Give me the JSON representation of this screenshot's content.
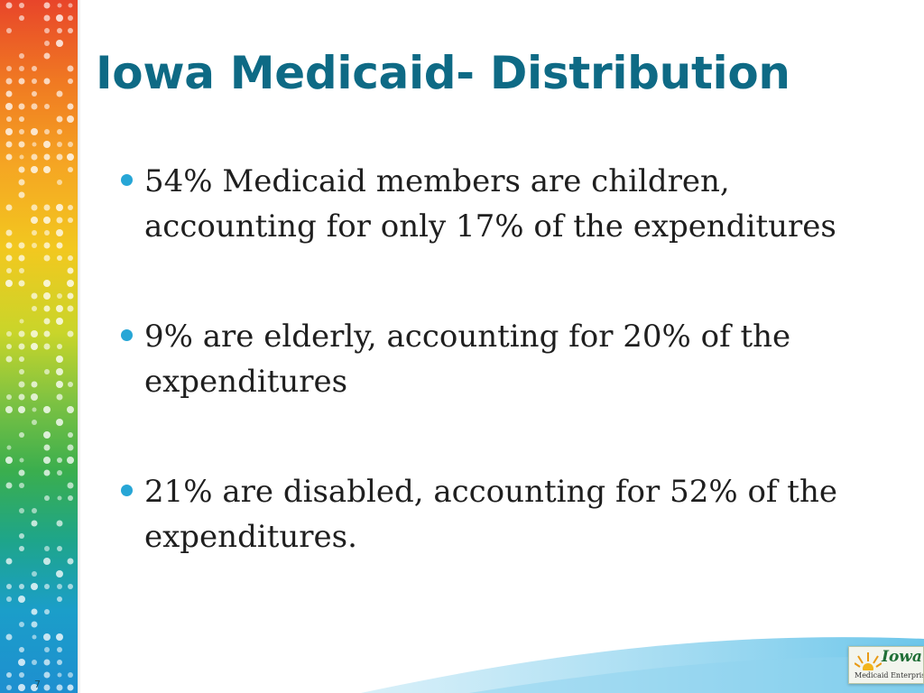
{
  "slide": {
    "title": "Iowa Medicaid- Distribution",
    "bullets": [
      "54% Medicaid members are children, accounting for only 17% of the expenditures",
      "9% are elderly, accounting for 20% of the expenditures",
      "21% are disabled, accounting for 52% of the expenditures."
    ],
    "slide_number": "7"
  },
  "logo": {
    "word": "Iowa",
    "subtitle": "Medicaid Enterprise"
  },
  "colors": {
    "title": "#0e6a85",
    "bullet_marker": "#27a6d6",
    "body_text": "#1f1f1f"
  },
  "icons": {
    "bullet": "filled-circle",
    "logo_mark": "sun-rays"
  }
}
